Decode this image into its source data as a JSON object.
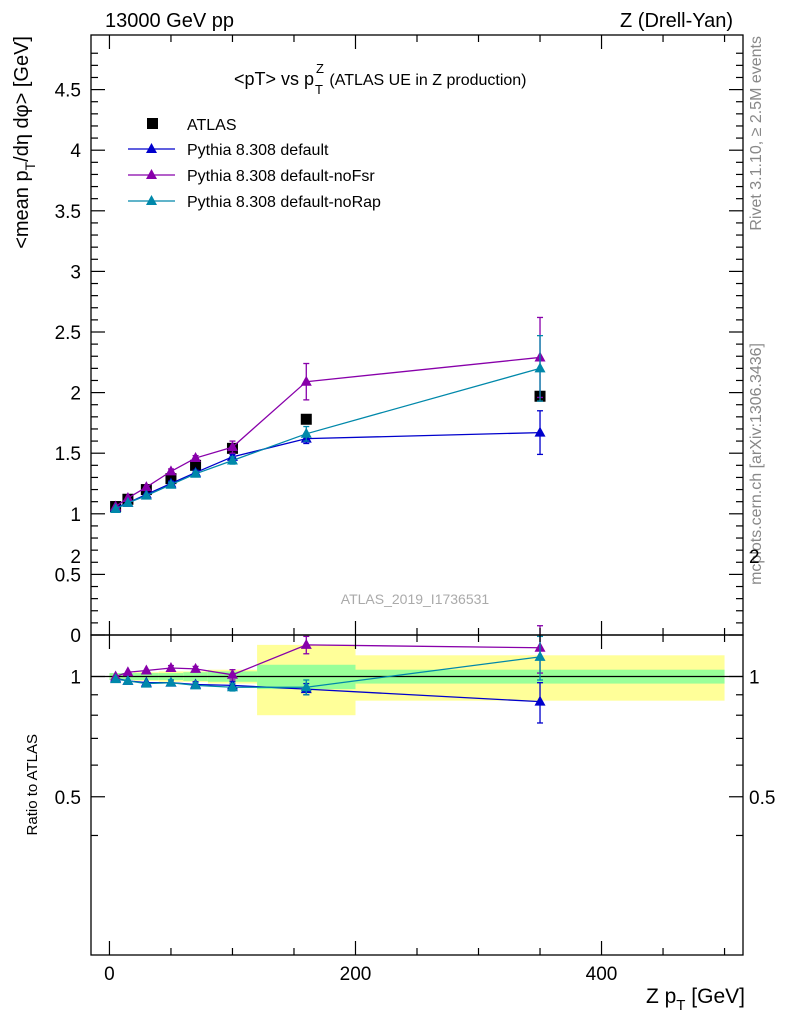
{
  "header": {
    "left": "13000 GeV pp",
    "right": "Z (Drell-Yan)"
  },
  "side_labels": {
    "rivet": "Rivet 3.1.10, ≥ 2.5M events",
    "mcplots": "mcplots.cern.ch [arXiv:1306.3436]"
  },
  "chart_data": {
    "type": "line",
    "title_main": "<pT> vs p",
    "title_sup": "Z",
    "title_sub": "T",
    "title_tail": " (ATLAS UE in Z production)",
    "analysis_label": "ATLAS_2019_I1736531",
    "ylabel_main": "<mean p",
    "ylabel_sub": "T",
    "ylabel_tail": "/dη dφ> [GeV]",
    "ratio_ylabel": "Ratio to ATLAS",
    "xlabel_main": "Z p",
    "xlabel_sub": "T",
    "xlabel_tail": " [GeV]",
    "xlim": [
      -15,
      515
    ],
    "ylim_main": [
      0,
      4.95
    ],
    "ylim_ratio": [
      0.35,
      2.3
    ],
    "x_ticks": [
      "0",
      "200",
      "400"
    ],
    "y_ticks_main": [
      "0",
      "0.5",
      "1",
      "1.5",
      "2",
      "2.5",
      "3",
      "3.5",
      "4",
      "4.5"
    ],
    "y_ticks_ratio": [
      "0.5",
      "1",
      "2"
    ],
    "legend": [
      "ATLAS",
      "Pythia 8.308 default",
      "Pythia 8.308 default-noFsr",
      "Pythia 8.308 default-noRap"
    ],
    "data": {
      "name": "ATLAS",
      "color": "#000000",
      "x": [
        5,
        15,
        30,
        50,
        70,
        100,
        160,
        350
      ],
      "y": [
        1.06,
        1.12,
        1.2,
        1.29,
        1.4,
        1.54,
        1.78,
        1.97
      ]
    },
    "band": {
      "xedges": [
        0,
        10,
        20,
        40,
        60,
        80,
        120,
        200,
        500
      ],
      "stat": [
        0.02,
        0.02,
        0.02,
        0.02,
        0.025,
        0.03,
        0.07,
        0.04
      ],
      "total": [
        0.02,
        0.02,
        0.025,
        0.03,
        0.03,
        0.04,
        0.2,
        0.13
      ]
    },
    "series": [
      {
        "name": "Pythia 8.308 default",
        "color": "#0000cc",
        "x": [
          5,
          15,
          30,
          50,
          70,
          100,
          160,
          350
        ],
        "y": [
          1.05,
          1.09,
          1.16,
          1.25,
          1.34,
          1.47,
          1.62,
          1.67
        ],
        "err": [
          0.01,
          0.01,
          0.01,
          0.02,
          0.02,
          0.02,
          0.04,
          0.18
        ],
        "ratio": [
          0.99,
          0.975,
          0.965,
          0.965,
          0.955,
          0.95,
          0.93,
          0.865
        ],
        "ratio_err": [
          0.01,
          0.01,
          0.01,
          0.015,
          0.015,
          0.02,
          0.03,
          0.1
        ]
      },
      {
        "name": "Pythia 8.308 default-noFsr",
        "color": "#8800aa",
        "x": [
          5,
          15,
          30,
          50,
          70,
          100,
          160,
          350
        ],
        "y": [
          1.06,
          1.13,
          1.22,
          1.35,
          1.46,
          1.55,
          2.09,
          2.29
        ],
        "err": [
          0.01,
          0.01,
          0.01,
          0.02,
          0.02,
          0.05,
          0.15,
          0.33
        ],
        "ratio": [
          1.0,
          1.025,
          1.035,
          1.05,
          1.045,
          1.01,
          1.2,
          1.18
        ],
        "ratio_err": [
          0.01,
          0.01,
          0.01,
          0.015,
          0.015,
          0.03,
          0.06,
          0.16
        ]
      },
      {
        "name": "Pythia 8.308 default-noRap",
        "color": "#0088aa",
        "x": [
          5,
          15,
          30,
          50,
          70,
          100,
          160,
          350
        ],
        "y": [
          1.04,
          1.09,
          1.15,
          1.24,
          1.33,
          1.44,
          1.66,
          2.2
        ],
        "err": [
          0.01,
          0.01,
          0.01,
          0.02,
          0.02,
          0.03,
          0.06,
          0.27
        ],
        "ratio": [
          0.985,
          0.975,
          0.96,
          0.965,
          0.95,
          0.94,
          0.94,
          1.12
        ],
        "ratio_err": [
          0.01,
          0.01,
          0.01,
          0.015,
          0.015,
          0.02,
          0.04,
          0.14
        ]
      }
    ],
    "grid": false
  }
}
